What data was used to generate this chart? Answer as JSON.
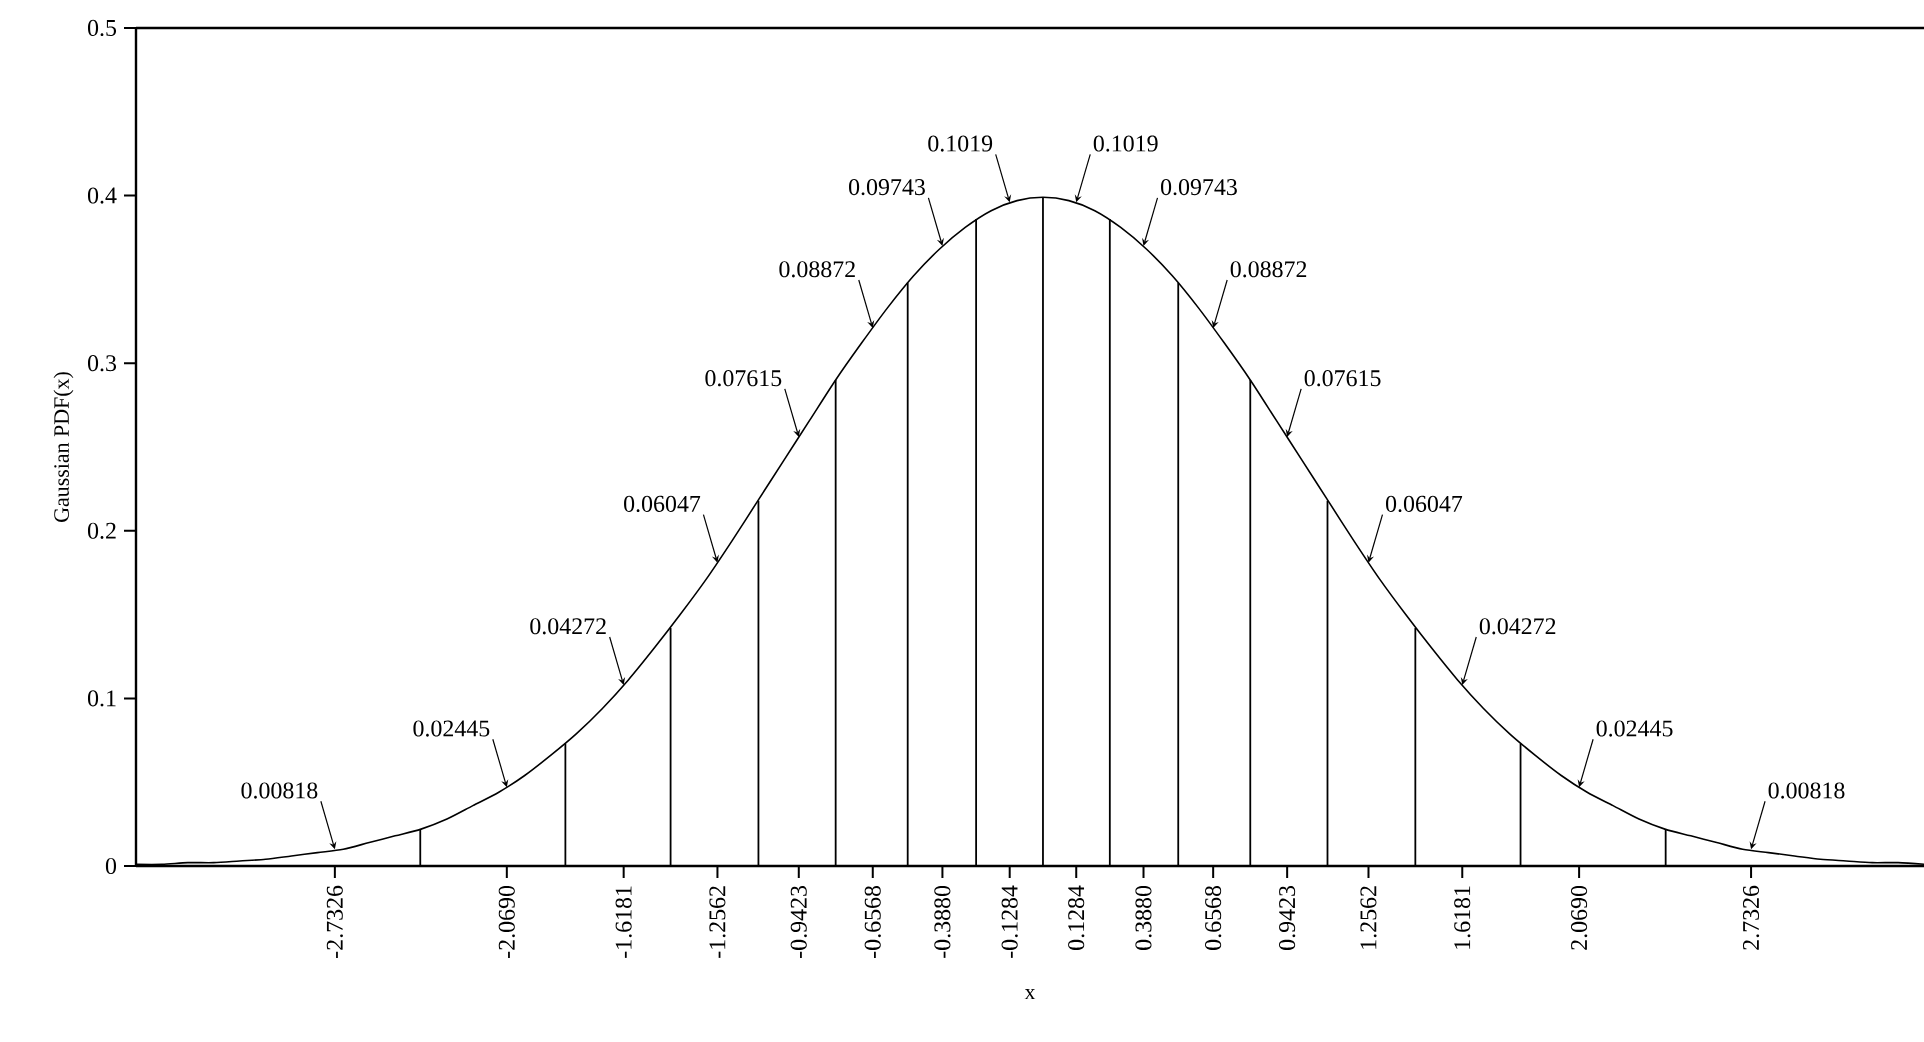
{
  "chart_data": {
    "type": "line",
    "xlabel": "x",
    "ylabel": "Gaussian PDF(x)",
    "xlim": [
      -3.5,
      3.4
    ],
    "ylim": [
      0,
      0.5
    ],
    "xticks": [
      -2.7326,
      {
        "value": -2.069,
        "label": "-2.0690"
      },
      -1.6181,
      -1.2562,
      -0.9423,
      -0.6568,
      {
        "value": -0.388,
        "label": "-0.3880"
      },
      -0.1284,
      0.1284,
      {
        "value": 0.388,
        "label": "0.3880"
      },
      0.6568,
      0.9423,
      1.2562,
      1.6181,
      {
        "value": 2.069,
        "label": "2.0690"
      },
      2.7326
    ],
    "yticks": [
      0,
      0.1,
      0.2,
      0.3,
      0.4,
      0.5
    ],
    "marker": "none",
    "series": [
      {
        "color": "#000000",
        "x": [
          -3.5,
          -3.4,
          -3.3,
          -3.2,
          -3.1,
          -3.0,
          -2.9,
          -2.8,
          -2.7,
          -2.6,
          -2.5,
          -2.4,
          -2.3,
          -2.2,
          -2.1,
          -2.0,
          -1.9,
          -1.8,
          -1.7,
          -1.6,
          -1.5,
          -1.4,
          -1.3,
          -1.2,
          -1.1,
          -1.0,
          -0.9,
          -0.8,
          -0.7,
          -0.6,
          -0.5,
          -0.4,
          -0.3,
          -0.2,
          -0.1,
          0.0,
          0.1,
          0.2,
          0.3,
          0.4,
          0.5,
          0.6,
          0.7,
          0.8,
          0.9,
          1.0,
          1.1,
          1.2,
          1.3,
          1.4,
          1.5,
          1.6,
          1.7,
          1.8,
          1.9,
          2.0,
          2.1,
          2.2,
          2.3,
          2.4,
          2.5,
          2.6,
          2.7,
          2.8,
          2.9,
          3.0,
          3.1,
          3.2,
          3.3,
          3.4
        ],
        "values": [
          0.001,
          0.001,
          0.002,
          0.002,
          0.003,
          0.004,
          0.006,
          0.008,
          0.01,
          0.014,
          0.018,
          0.022,
          0.028,
          0.036,
          0.044,
          0.054,
          0.066,
          0.079,
          0.094,
          0.111,
          0.13,
          0.15,
          0.171,
          0.194,
          0.218,
          0.242,
          0.266,
          0.29,
          0.312,
          0.333,
          0.352,
          0.368,
          0.381,
          0.391,
          0.397,
          0.399,
          0.397,
          0.391,
          0.381,
          0.368,
          0.352,
          0.333,
          0.312,
          0.29,
          0.266,
          0.242,
          0.218,
          0.194,
          0.171,
          0.15,
          0.13,
          0.111,
          0.094,
          0.079,
          0.066,
          0.054,
          0.044,
          0.036,
          0.028,
          0.022,
          0.018,
          0.014,
          0.01,
          0.008,
          0.006,
          0.004,
          0.003,
          0.002,
          0.002,
          0.001
        ]
      },
      {
        "type": "bar",
        "color": "#000000",
        "x": [
          -2.403,
          -1.843,
          -1.437,
          -1.098,
          -0.8,
          -0.522,
          -0.258,
          0.0,
          0.258,
          0.522,
          0.8,
          1.098,
          1.437,
          1.843,
          2.403
        ],
        "values": [
          0.022,
          0.073,
          0.142,
          0.218,
          0.29,
          0.348,
          0.386,
          0.399,
          0.386,
          0.348,
          0.29,
          0.218,
          0.142,
          0.073,
          0.022
        ]
      }
    ],
    "annotations": [
      {
        "text": "0.00818",
        "x": -2.7326,
        "y": 0.01
      },
      {
        "text": "0.02445",
        "x": -2.069,
        "y": 0.047
      },
      {
        "text": "0.04272",
        "x": -1.6181,
        "y": 0.108
      },
      {
        "text": "0.06047",
        "x": -1.2562,
        "y": 0.181
      },
      {
        "text": "0.07615",
        "x": -0.9423,
        "y": 0.256
      },
      {
        "text": "0.08872",
        "x": -0.6568,
        "y": 0.321
      },
      {
        "text": "0.09743",
        "x": -0.388,
        "y": 0.37
      },
      {
        "text": "0.1019",
        "x": -0.1284,
        "y": 0.396
      },
      {
        "text": "0.1019",
        "x": 0.1284,
        "y": 0.396
      },
      {
        "text": "0.09743",
        "x": 0.388,
        "y": 0.37
      },
      {
        "text": "0.08872",
        "x": 0.6568,
        "y": 0.321
      },
      {
        "text": "0.07615",
        "x": 0.9423,
        "y": 0.256
      },
      {
        "text": "0.06047",
        "x": 1.2562,
        "y": 0.181
      },
      {
        "text": "0.04272",
        "x": 1.6181,
        "y": 0.108
      },
      {
        "text": "0.02445",
        "x": 2.069,
        "y": 0.047
      },
      {
        "text": "0.00818",
        "x": 2.7326,
        "y": 0.01
      }
    ]
  }
}
